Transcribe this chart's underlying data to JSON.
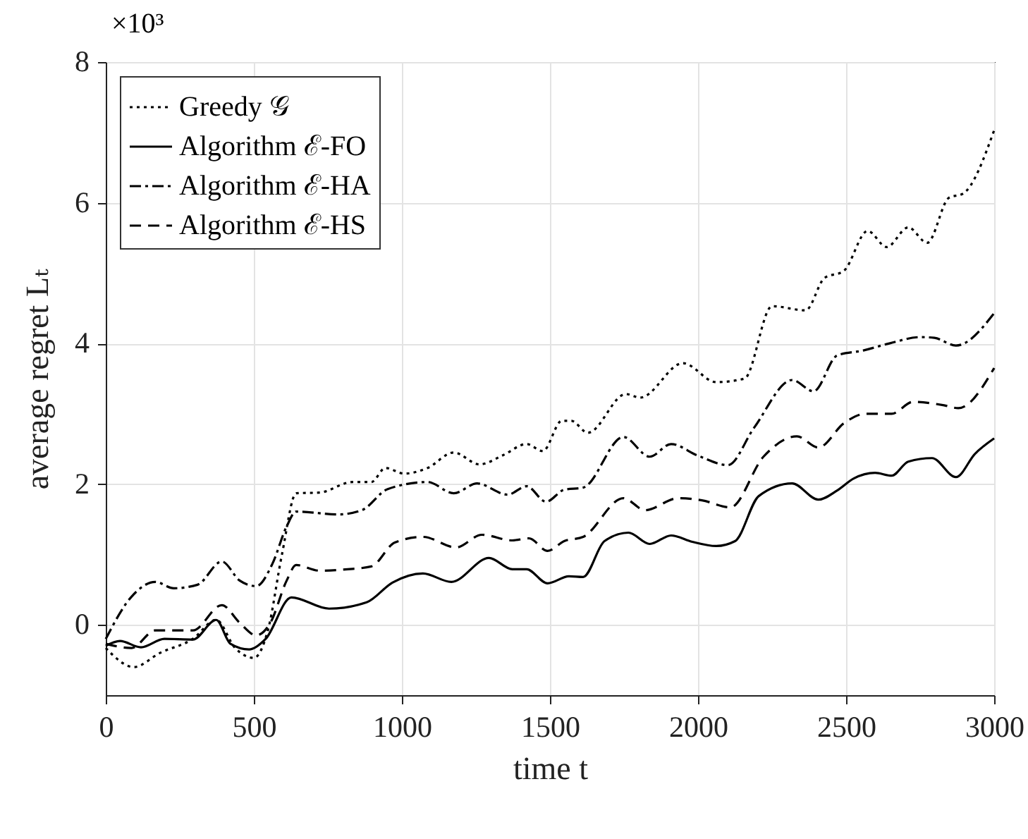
{
  "chart_data": {
    "type": "line",
    "xlabel": "time t",
    "ylabel": "average regret Lₜ",
    "annotations": [
      "×10³"
    ],
    "xlim": [
      0,
      3000
    ],
    "xticks": [
      0,
      500,
      1000,
      1500,
      2000,
      2500,
      3000
    ],
    "ylim": [
      -1,
      8
    ],
    "yticks": [
      0,
      2,
      4,
      6,
      8
    ],
    "grid": true,
    "legend": "top left",
    "marker": "none",
    "series": [
      {
        "name": "Greedy 𝒢",
        "color": "#000000",
        "line_style": "dotted",
        "x": [
          0,
          95,
          183,
          294,
          373,
          437,
          500,
          548,
          595,
          643,
          722,
          833,
          897,
          944,
          1008,
          1087,
          1175,
          1262,
          1341,
          1421,
          1476,
          1540,
          1572,
          1628,
          1756,
          1805,
          1949,
          2061,
          2157,
          2250,
          2363,
          2427,
          2492,
          2573,
          2637,
          2710,
          2774,
          2847,
          2895,
          3000
        ],
        "values": [
          -0.33,
          -0.6,
          -0.4,
          -0.2,
          0.07,
          -0.33,
          -0.47,
          -0.07,
          1.0,
          1.87,
          1.88,
          2.03,
          2.03,
          2.23,
          2.15,
          2.23,
          2.45,
          2.28,
          2.41,
          2.57,
          2.47,
          2.9,
          2.9,
          2.73,
          3.28,
          3.23,
          3.72,
          3.45,
          3.5,
          4.53,
          4.47,
          4.93,
          5.03,
          5.6,
          5.37,
          5.65,
          5.43,
          6.07,
          6.13,
          7.03
        ]
      },
      {
        "name": "Algorithm ℰ-FO",
        "color": "#000000",
        "line_style": "solid",
        "x": [
          0,
          48,
          119,
          198,
          294,
          373,
          421,
          484,
          540,
          627,
          754,
          881,
          968,
          1071,
          1167,
          1294,
          1373,
          1421,
          1492,
          1564,
          1612,
          1684,
          1765,
          1837,
          1909,
          1981,
          2061,
          2125,
          2205,
          2318,
          2406,
          2470,
          2526,
          2598,
          2654,
          2710,
          2790,
          2871,
          2935,
          3000
        ],
        "values": [
          -0.3,
          -0.23,
          -0.32,
          -0.2,
          -0.21,
          0.07,
          -0.27,
          -0.35,
          -0.2,
          0.39,
          0.23,
          0.32,
          0.6,
          0.73,
          0.61,
          0.95,
          0.79,
          0.79,
          0.59,
          0.69,
          0.68,
          1.19,
          1.31,
          1.15,
          1.27,
          1.18,
          1.12,
          1.19,
          1.83,
          2.01,
          1.78,
          1.91,
          2.08,
          2.16,
          2.12,
          2.32,
          2.37,
          2.1,
          2.43,
          2.65
        ]
      },
      {
        "name": "Algorithm ℰ-HA",
        "color": "#000000",
        "line_style": "dashdot",
        "x": [
          0,
          87,
          167,
          230,
          310,
          392,
          452,
          508,
          563,
          611,
          643,
          786,
          865,
          952,
          1087,
          1175,
          1254,
          1357,
          1421,
          1487,
          1548,
          1612,
          1748,
          1837,
          1909,
          1997,
          2101,
          2189,
          2318,
          2390,
          2470,
          2558,
          2646,
          2750,
          2798,
          2871,
          3000
        ],
        "values": [
          -0.2,
          0.4,
          0.61,
          0.52,
          0.57,
          0.9,
          0.63,
          0.55,
          0.87,
          1.4,
          1.61,
          1.57,
          1.63,
          1.93,
          2.03,
          1.87,
          2.01,
          1.85,
          1.97,
          1.75,
          1.92,
          1.95,
          2.67,
          2.39,
          2.57,
          2.41,
          2.27,
          2.8,
          3.48,
          3.32,
          3.83,
          3.9,
          4.0,
          4.09,
          4.08,
          3.97,
          4.43
        ]
      },
      {
        "name": "Algorithm ℰ-HS",
        "color": "#000000",
        "line_style": "dashed",
        "x": [
          0,
          87,
          167,
          294,
          392,
          452,
          508,
          556,
          611,
          643,
          722,
          817,
          897,
          976,
          1071,
          1183,
          1270,
          1373,
          1429,
          1492,
          1548,
          1612,
          1748,
          1821,
          1933,
          2013,
          2109,
          2221,
          2334,
          2406,
          2494,
          2566,
          2654,
          2726,
          2831,
          2879,
          3000
        ],
        "values": [
          -0.27,
          -0.33,
          -0.08,
          -0.08,
          0.28,
          0.03,
          -0.15,
          0.03,
          0.63,
          0.85,
          0.77,
          0.79,
          0.83,
          1.17,
          1.25,
          1.1,
          1.28,
          1.2,
          1.23,
          1.05,
          1.19,
          1.25,
          1.8,
          1.63,
          1.8,
          1.77,
          1.67,
          2.39,
          2.68,
          2.52,
          2.87,
          3.0,
          3.0,
          3.17,
          3.12,
          3.08,
          3.65
        ]
      }
    ]
  }
}
